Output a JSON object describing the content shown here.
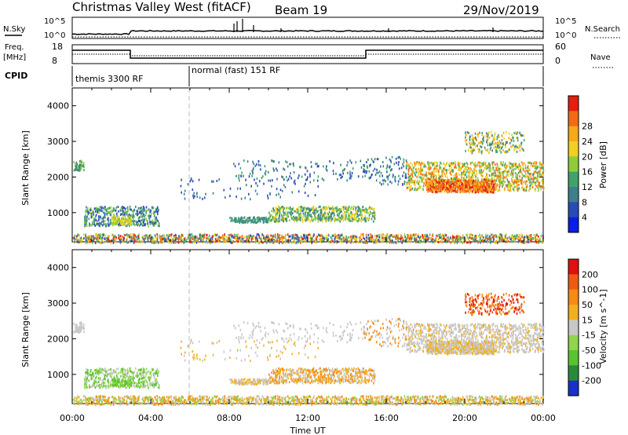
{
  "header": {
    "title": "Christmas Valley West (fitACF)",
    "beam": "Beam 19",
    "date": "29/Nov/2019"
  },
  "status_panels": {
    "nsky_label": "N.Sky",
    "nsearch_label": "N.Search",
    "nsky_ticks": [
      "10^5",
      "10^0"
    ],
    "nsearch_ticks": [
      "10^5",
      "10^0"
    ],
    "freq_label": "Freq.",
    "freq_unit": "[MHz]",
    "freq_ticks": [
      "18",
      "8"
    ],
    "nave_label": "Nave",
    "nave_ticks": [
      "60",
      "0"
    ],
    "cpid_label": "CPID",
    "cpid_segments": [
      "themis 3300 RF",
      "normal (fast) 151 RF"
    ]
  },
  "chart_data": [
    {
      "type": "heatmap",
      "title": "",
      "xlabel": "",
      "ylabel": "Slant Range [km]",
      "xlim": [
        "00:00",
        "24:00"
      ],
      "ylim": [
        180,
        4500
      ],
      "yticks": [
        "1000",
        "2000",
        "3000",
        "4000"
      ],
      "colorbar": {
        "label": "Power [dB]",
        "ticks": [
          "4",
          "8",
          "12",
          "16",
          "20",
          "24",
          "28"
        ],
        "range": [
          0,
          30
        ],
        "colors": [
          "#0a1ee6",
          "#2a4ab8",
          "#3f7f8c",
          "#3fa36b",
          "#8fcc3a",
          "#f0d020",
          "#f7a91a",
          "#f36a14",
          "#e61e10"
        ]
      }
    },
    {
      "type": "heatmap",
      "title": "",
      "xlabel": "Time UT",
      "ylabel": "Slant Range [km]",
      "xlim": [
        "00:00",
        "24:00"
      ],
      "ylim": [
        180,
        4500
      ],
      "yticks": [
        "1000",
        "2000",
        "3000",
        "4000"
      ],
      "xticks": [
        "00:00",
        "04:00",
        "08:00",
        "12:00",
        "16:00",
        "20:00",
        "00:00"
      ],
      "colorbar": {
        "label": "Velocity [m s^-1]",
        "ticks": [
          "200",
          "100",
          "50",
          "15",
          "-15",
          "-50",
          "-100",
          "-200"
        ],
        "colors": [
          "#1a2fc8",
          "#2a8a3a",
          "#5cc230",
          "#8fd64a",
          "#c8c8c8",
          "#f0b020",
          "#f58a14",
          "#f05a10",
          "#e01010"
        ]
      }
    }
  ]
}
